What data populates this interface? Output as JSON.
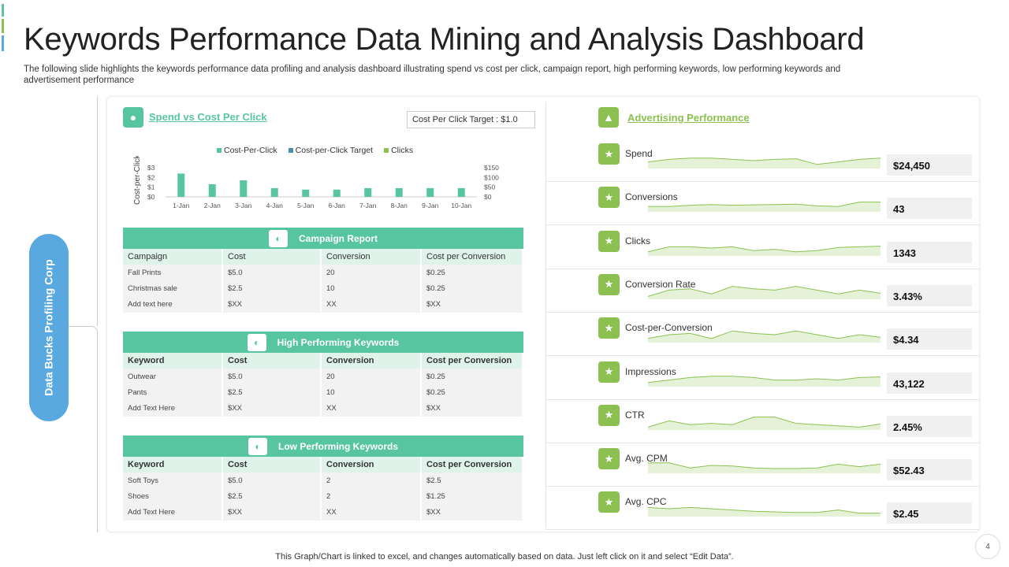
{
  "title": "Keywords Performance Data Mining and Analysis Dashboard",
  "subtitle": "The following slide highlights the keywords performance data profiling and analysis dashboard illustrating spend vs cost per click, campaign report, high performing keywords, low performing keywords and advertisement performance",
  "side_label": "Data Bucks Profiling Corp",
  "colors": {
    "teal": "#57c5a0",
    "green": "#8cc152",
    "blue": "#5aa8e0",
    "target": "#4a8fb0"
  },
  "spend_section": {
    "title": "Spend vs  Cost  Per Click",
    "target": "Cost Per Click Target : $1.0",
    "icon": "user-money-icon"
  },
  "chart_data": {
    "type": "bar",
    "categories": [
      "1-Jan",
      "2-Jan",
      "3-Jan",
      "4-Jan",
      "5-Jan",
      "6-Jan",
      "7-Jan",
      "8-Jan",
      "9-Jan",
      "10-Jan"
    ],
    "series": [
      {
        "name": "Cost-Per-Click",
        "values": [
          2.4,
          1.3,
          1.7,
          0.9,
          0.75,
          0.75,
          0.9,
          0.9,
          0.9,
          0.9
        ]
      }
    ],
    "legend": [
      "Cost-Per-Click",
      "Cost-per-Click Target",
      "Clicks"
    ],
    "legend_placement": "top",
    "ylabel": "Cost-per-Click",
    "ylim": [
      0,
      3
    ],
    "yticks": [
      "$3",
      "$2",
      "$1",
      "$0"
    ],
    "y2ticks": [
      "$150",
      "$100",
      "$50",
      "$0"
    ],
    "y2lim": [
      0,
      150
    ]
  },
  "tables": [
    {
      "title": "Campaign Report",
      "icon": "report-icon",
      "bold_header": false,
      "headers": [
        "Campaign",
        "Cost",
        "Conversion",
        "Cost per Conversion"
      ],
      "rows": [
        [
          "Fall Prints",
          "$5.0",
          "20",
          " $0.25"
        ],
        [
          "Christmas sale",
          "$2.5",
          "10",
          " $0.25"
        ],
        [
          "Add text here",
          "$XX",
          "XX",
          " $XX"
        ]
      ]
    },
    {
      "title": "High  Performing Keywords",
      "icon": "gauge-high-icon",
      "bold_header": true,
      "headers": [
        "Keyword",
        "Cost",
        "Conversion",
        "Cost per Conversion"
      ],
      "rows": [
        [
          "Outwear",
          "$5.0",
          "20",
          " $0.25"
        ],
        [
          "Pants",
          "$2.5",
          "10",
          " $0.25"
        ],
        [
          "Add Text Here",
          "$XX",
          "XX",
          " $XX"
        ]
      ]
    },
    {
      "title": "Low Performing Keywords",
      "icon": "gauge-low-icon",
      "bold_header": true,
      "headers": [
        "Keyword",
        "Cost",
        "Conversion",
        "Cost per Conversion"
      ],
      "rows": [
        [
          "Soft Toys",
          "$5.0",
          "2",
          "$2.5"
        ],
        [
          "Shoes",
          " $2.5",
          "2",
          " $1.25"
        ],
        [
          "Add Text Here",
          "$XX",
          "XX",
          " $XX"
        ]
      ]
    }
  ],
  "advertising": {
    "title": "Advertising  Performance",
    "icon": "megaphone-icon",
    "metrics": [
      {
        "label": "Spend",
        "value": "$24,450",
        "icon": "hand-money-icon",
        "spark": [
          4,
          6,
          7,
          7,
          6,
          5,
          6,
          6.5,
          2,
          4,
          6,
          7
        ]
      },
      {
        "label": "Conversions",
        "value": "43",
        "icon": "chat-user-icon",
        "spark": [
          3,
          3,
          4,
          4.5,
          4,
          4.3,
          4.5,
          4.8,
          3.5,
          3,
          6.5,
          6.5
        ]
      },
      {
        "label": "Clicks",
        "value": "1343",
        "icon": "click-icon",
        "spark": [
          2,
          6,
          6,
          5,
          6,
          3,
          4,
          2,
          3,
          5.5,
          6,
          6.5
        ]
      },
      {
        "label": "Conversion Rate",
        "value": "3.43%",
        "icon": "network-icon",
        "spark": [
          1,
          6,
          7,
          3,
          9,
          7,
          6,
          9,
          6,
          3,
          6,
          3.5
        ]
      },
      {
        "label": "Cost-per-Conversion",
        "value": "$4.34",
        "icon": "boxes-icon",
        "spark": [
          2,
          5,
          6,
          2,
          8,
          6,
          5,
          8,
          5,
          2,
          5,
          3
        ]
      },
      {
        "label": "Impressions",
        "value": "43,122",
        "icon": "money-bag-icon",
        "spark": [
          2,
          4,
          6,
          7,
          7,
          6,
          4,
          4,
          5,
          4,
          6,
          6.5
        ]
      },
      {
        "label": "CTR",
        "value": "2.45%",
        "icon": "people-network-icon",
        "spark": [
          1,
          6,
          3,
          4,
          3,
          9,
          9,
          4,
          3,
          2,
          1,
          3.5
        ]
      },
      {
        "label": "Avg.  CPM",
        "value": "$52.43",
        "icon": "shop-icon",
        "spark": [
          7,
          7,
          3,
          5,
          4.5,
          3,
          2.5,
          2.5,
          3,
          6,
          4,
          6
        ]
      },
      {
        "label": "Avg.  CPC",
        "value": "$2.45",
        "icon": "calendar-icon",
        "spark": [
          6,
          5,
          6,
          5,
          4,
          3,
          2.5,
          2,
          2,
          4,
          1.5,
          1.5
        ]
      }
    ]
  },
  "footer": "This Graph/Chart is linked to excel,  and changes automatically based on data. Just left click on it and select “Edit Data”.",
  "page_number": "4"
}
